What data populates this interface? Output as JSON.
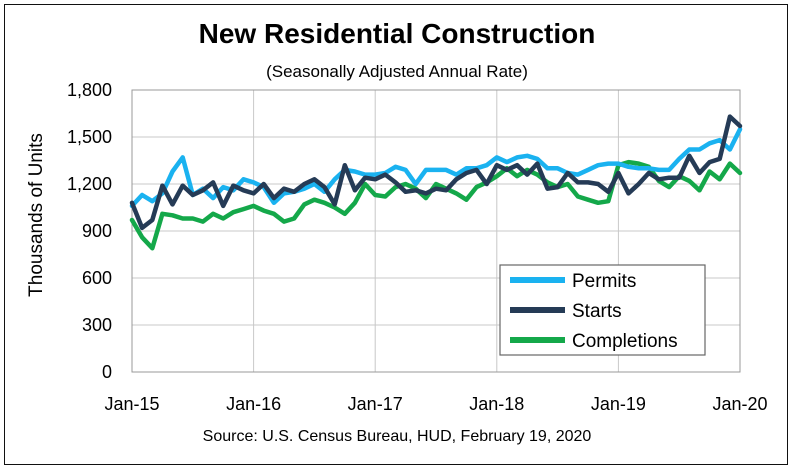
{
  "chart_data": {
    "type": "line",
    "title": "New Residential Construction",
    "subtitle": "(Seasonally Adjusted Annual Rate)",
    "source": "Source:  U.S. Census Bureau, HUD, February 19, 2020",
    "ylabel": "Thousands of Units",
    "xlabel": "",
    "ylim": [
      0,
      1800
    ],
    "yticks": [
      0,
      300,
      600,
      900,
      1200,
      1500,
      1800
    ],
    "ytick_labels": [
      "0",
      "300",
      "600",
      "900",
      "1,200",
      "1,500",
      "1,800"
    ],
    "x_tick_labels": [
      "Jan-15",
      "Jan-16",
      "Jan-17",
      "Jan-18",
      "Jan-19",
      "Jan-20"
    ],
    "x_tick_index": [
      0,
      12,
      24,
      36,
      48,
      60
    ],
    "grid": true,
    "legend_position": "bottom-right",
    "series": [
      {
        "name": "Permits",
        "color": "#1ab2f0",
        "values": [
          1060,
          1130,
          1090,
          1140,
          1280,
          1370,
          1130,
          1170,
          1110,
          1180,
          1160,
          1230,
          1210,
          1180,
          1080,
          1140,
          1150,
          1170,
          1200,
          1150,
          1230,
          1290,
          1280,
          1260,
          1260,
          1270,
          1310,
          1290,
          1200,
          1290,
          1290,
          1290,
          1260,
          1300,
          1300,
          1320,
          1370,
          1340,
          1370,
          1380,
          1360,
          1300,
          1300,
          1270,
          1260,
          1290,
          1320,
          1330,
          1330,
          1310,
          1300,
          1300,
          1290,
          1290,
          1360,
          1420,
          1420,
          1460,
          1480,
          1420,
          1550
        ]
      },
      {
        "name": "Starts",
        "color": "#253b56",
        "values": [
          1080,
          920,
          970,
          1190,
          1070,
          1190,
          1130,
          1160,
          1210,
          1060,
          1190,
          1160,
          1140,
          1200,
          1110,
          1170,
          1150,
          1200,
          1230,
          1180,
          1070,
          1320,
          1160,
          1240,
          1230,
          1260,
          1210,
          1150,
          1160,
          1140,
          1170,
          1160,
          1230,
          1270,
          1290,
          1200,
          1320,
          1290,
          1320,
          1260,
          1330,
          1170,
          1180,
          1270,
          1210,
          1210,
          1200,
          1150,
          1270,
          1140,
          1200,
          1270,
          1230,
          1240,
          1240,
          1380,
          1270,
          1340,
          1360,
          1630,
          1570
        ]
      },
      {
        "name": "Completions",
        "color": "#14a84a",
        "values": [
          970,
          860,
          790,
          1010,
          1000,
          980,
          980,
          960,
          1010,
          980,
          1020,
          1040,
          1060,
          1030,
          1010,
          960,
          980,
          1070,
          1100,
          1080,
          1050,
          1010,
          1080,
          1200,
          1130,
          1120,
          1180,
          1200,
          1170,
          1110,
          1200,
          1170,
          1140,
          1100,
          1180,
          1210,
          1250,
          1300,
          1250,
          1290,
          1260,
          1210,
          1180,
          1200,
          1120,
          1100,
          1080,
          1090,
          1320,
          1340,
          1330,
          1310,
          1220,
          1180,
          1250,
          1220,
          1160,
          1280,
          1230,
          1330,
          1270
        ]
      }
    ]
  }
}
